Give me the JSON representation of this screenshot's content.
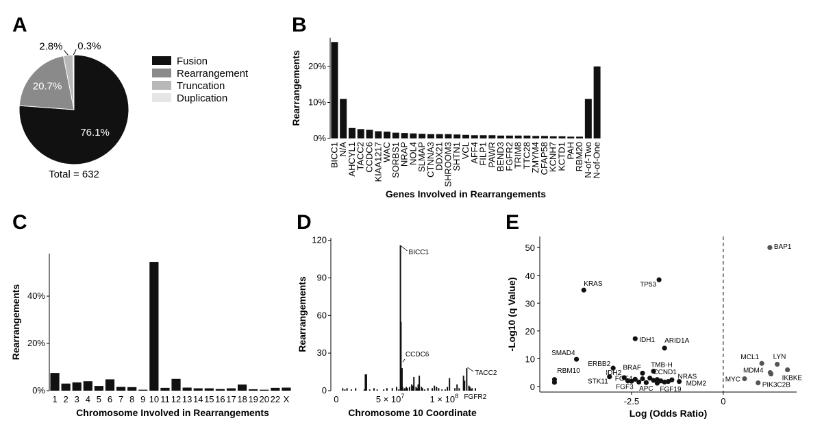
{
  "panels": {
    "a": "A",
    "b": "B",
    "c": "C",
    "d": "D",
    "e": "E"
  },
  "chart_data": [
    {
      "panel": "A",
      "type": "pie",
      "labels": [
        "Fusion",
        "Rearrangement",
        "Truncation",
        "Duplication"
      ],
      "values": [
        76.1,
        20.7,
        2.8,
        0.3
      ],
      "value_labels": [
        "76.1%",
        "20.7%",
        "2.8%",
        "0.3%"
      ],
      "colors": [
        "#111111",
        "#8a8a8a",
        "#b8b8b8",
        "#e6e6e6"
      ],
      "total_label": "Total = 632",
      "legend": "right"
    },
    {
      "panel": "B",
      "type": "bar",
      "ylabel": "Rearrangements",
      "xlabel": "Genes Involved in Rearrangements",
      "categories": [
        "BICC1",
        "N/A",
        "AHCYL1",
        "TACC2",
        "CCDC6",
        "KIAA1217",
        "WAC",
        "SORBS1",
        "NRAP",
        "NOL4",
        "SLMAP",
        "CTNNA3",
        "DDX21",
        "SHROOM3",
        "SHTN1",
        "VCL",
        "AFF4",
        "FILP1",
        "PAWR",
        "BEND3",
        "FGFR2",
        "TRIM8",
        "TTC28",
        "ZMYM4",
        "CFAP58",
        "KCNH7",
        "KCTD1",
        "PAH",
        "RBM20",
        "N-of-Two",
        "N-of-One"
      ],
      "values": [
        26.8,
        11.0,
        2.9,
        2.6,
        2.4,
        2.0,
        1.9,
        1.6,
        1.5,
        1.4,
        1.3,
        1.2,
        1.2,
        1.2,
        1.1,
        1.0,
        0.9,
        0.9,
        0.9,
        0.8,
        0.8,
        0.8,
        0.8,
        0.7,
        0.7,
        0.6,
        0.6,
        0.5,
        0.5,
        11.0,
        20.0
      ],
      "ylim": [
        0,
        28
      ],
      "yticks": [
        0,
        10,
        20
      ],
      "ytick_labels": [
        "0%",
        "10%",
        "20%"
      ]
    },
    {
      "panel": "C",
      "type": "bar",
      "ylabel": "Rearrangements",
      "xlabel": "Chromosome Involved in Rearrangements",
      "categories": [
        "1",
        "2",
        "3",
        "4",
        "5",
        "6",
        "7",
        "8",
        "9",
        "10",
        "11",
        "12",
        "13",
        "14",
        "15",
        "16",
        "17",
        "18",
        "19",
        "20",
        "22",
        "X"
      ],
      "values": [
        7.5,
        3.0,
        3.5,
        4.0,
        2.0,
        4.8,
        1.6,
        1.5,
        0.4,
        54.5,
        1.2,
        5.0,
        1.3,
        1.0,
        1.0,
        0.7,
        1.0,
        2.6,
        0.6,
        0.4,
        1.2,
        1.3
      ],
      "ylim": [
        0,
        58
      ],
      "yticks": [
        0,
        20,
        40
      ],
      "ytick_labels": [
        "0%",
        "20%",
        "40%"
      ]
    },
    {
      "panel": "D",
      "type": "bar",
      "ylabel": "Rearrangements",
      "xlabel": "Chromosome 10 Coordinate",
      "xlim": [
        -5000000,
        136000000
      ],
      "xticks": [
        0,
        50000000,
        100000000
      ],
      "xtick_labels": [
        "0",
        "5 × 10",
        "1 × 10"
      ],
      "xtick_exponents": [
        "",
        "7",
        "8"
      ],
      "ylim": [
        0,
        122
      ],
      "yticks": [
        0,
        30,
        60,
        90,
        120
      ],
      "x": [
        6000000,
        8000000,
        10000000,
        14000000,
        18000000,
        26000000,
        27000000,
        28000000,
        31000000,
        35000000,
        38000000,
        44000000,
        47000000,
        52000000,
        56000000,
        58000000,
        59500000,
        60000000,
        61000000,
        61500000,
        62000000,
        63500000,
        65000000,
        66000000,
        68000000,
        70000000,
        71000000,
        72000000,
        74000000,
        75000000,
        76000000,
        77000000,
        79000000,
        80000000,
        82000000,
        85000000,
        89000000,
        91000000,
        93000000,
        95000000,
        98000000,
        101000000,
        103000000,
        105000000,
        110000000,
        112000000,
        114000000,
        118000000,
        119000000,
        121000000,
        123000000,
        124000000,
        125000000,
        126000000,
        129000000
      ],
      "values": [
        2,
        1,
        2,
        1,
        2,
        1,
        13,
        13,
        1,
        2,
        1,
        1,
        2,
        2,
        3,
        1,
        116,
        55,
        18,
        3,
        1,
        2,
        3,
        2,
        3,
        5,
        4,
        11,
        3,
        2,
        5,
        12,
        3,
        2,
        1,
        2,
        2,
        4,
        3,
        2,
        1,
        1,
        3,
        10,
        2,
        5,
        2,
        12,
        8,
        18,
        4,
        3,
        1,
        2,
        2
      ],
      "annotations": [
        {
          "label": "BICC1",
          "x": 59500000,
          "y": 116
        },
        {
          "label": "CCDC6",
          "x": 61000000,
          "y": 24
        },
        {
          "label": "TACC2",
          "x": 121000000,
          "y": 18
        },
        {
          "label": "FGFR2",
          "x": 121000000,
          "y": 0
        }
      ]
    },
    {
      "panel": "E",
      "type": "scatter",
      "ylabel": "-Log10 (q Value)",
      "xlabel": "Log (Odds Ratio)",
      "xlim": [
        -5.0,
        2.0
      ],
      "ylim": [
        -2,
        54
      ],
      "xticks": [
        -2.5,
        0
      ],
      "xtick_labels": [
        "-2.5",
        "0"
      ],
      "yticks": [
        0,
        10,
        20,
        30,
        40,
        50
      ],
      "reference_line_x": 0,
      "points": [
        {
          "label": "BAP1",
          "x": 1.27,
          "y": 50.0,
          "color": "#555555"
        },
        {
          "label": "KRAS",
          "x": -3.8,
          "y": 34.7,
          "color": "#111111"
        },
        {
          "label": "TP53",
          "x": -1.75,
          "y": 38.4,
          "color": "#111111"
        },
        {
          "label": "IDH1",
          "x": -2.4,
          "y": 17.2,
          "color": "#111111"
        },
        {
          "label": "ARID1A",
          "x": -1.6,
          "y": 13.8,
          "color": "#111111"
        },
        {
          "label": "SMAD4",
          "x": -4.0,
          "y": 9.8,
          "color": "#111111"
        },
        {
          "label": "RBM10",
          "x": -4.6,
          "y": 2.5,
          "color": "#111111"
        },
        {
          "label": "",
          "x": -4.6,
          "y": 1.5,
          "color": "#111111"
        },
        {
          "label": "ERBB2",
          "x": -3.0,
          "y": 6.6,
          "color": "#111111"
        },
        {
          "label": "BRAF",
          "x": -2.2,
          "y": 4.8,
          "color": "#111111"
        },
        {
          "label": "TMB-H",
          "x": -1.9,
          "y": 5.5,
          "color": "#111111"
        },
        {
          "label": "IDH2",
          "x": -2.7,
          "y": 3.2,
          "color": "#111111"
        },
        {
          "label": "CCND1",
          "x": -1.8,
          "y": 2.5,
          "color": "#111111"
        },
        {
          "label": "FGF4",
          "x": -2.4,
          "y": 2.6,
          "color": "#111111"
        },
        {
          "label": "NRAS",
          "x": -1.5,
          "y": 1.8,
          "color": "#111111"
        },
        {
          "label": "STK11",
          "x": -3.1,
          "y": 3.5,
          "color": "#111111"
        },
        {
          "label": "FGF3",
          "x": -2.3,
          "y": 1.6,
          "color": "#111111"
        },
        {
          "label": "APC",
          "x": -2.1,
          "y": 1.4,
          "color": "#111111"
        },
        {
          "label": "FGF19",
          "x": -1.8,
          "y": 1.2,
          "color": "#111111"
        },
        {
          "label": "MDM2",
          "x": -1.2,
          "y": 1.8,
          "color": "#111111"
        },
        {
          "label": "",
          "x": -2.6,
          "y": 2.0,
          "color": "#111111"
        },
        {
          "label": "",
          "x": -2.0,
          "y": 3.0,
          "color": "#111111"
        },
        {
          "label": "",
          "x": -1.9,
          "y": 2.2,
          "color": "#111111"
        },
        {
          "label": "",
          "x": -1.7,
          "y": 2.0,
          "color": "#111111"
        },
        {
          "label": "",
          "x": -1.6,
          "y": 1.6,
          "color": "#111111"
        },
        {
          "label": "",
          "x": -1.4,
          "y": 2.4,
          "color": "#111111"
        },
        {
          "label": "",
          "x": -2.5,
          "y": 1.9,
          "color": "#111111"
        },
        {
          "label": "",
          "x": -2.2,
          "y": 2.8,
          "color": "#111111"
        },
        {
          "label": "MCL1",
          "x": 1.05,
          "y": 8.3,
          "color": "#555555"
        },
        {
          "label": "LYN",
          "x": 1.47,
          "y": 8.0,
          "color": "#555555"
        },
        {
          "label": "MDM4",
          "x": 1.28,
          "y": 5.0,
          "color": "#555555"
        },
        {
          "label": "MYC",
          "x": 0.58,
          "y": 2.8,
          "color": "#555555"
        },
        {
          "label": "IKBKE",
          "x": 1.75,
          "y": 6.0,
          "color": "#555555"
        },
        {
          "label": "PIK3C2B",
          "x": 0.95,
          "y": 1.3,
          "color": "#555555"
        },
        {
          "label": "",
          "x": 1.3,
          "y": 4.5,
          "color": "#555555"
        }
      ]
    }
  ]
}
